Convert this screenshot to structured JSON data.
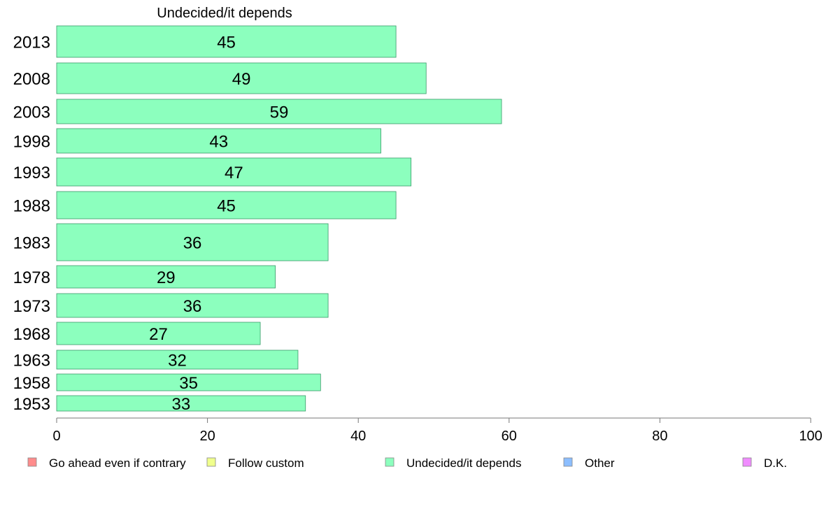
{
  "chart_data": {
    "type": "bar",
    "orientation": "horizontal",
    "title": "Undecided/it depends",
    "categories": [
      "2013",
      "2008",
      "2003",
      "1998",
      "1993",
      "1988",
      "1983",
      "1978",
      "1973",
      "1968",
      "1963",
      "1958",
      "1953"
    ],
    "values": [
      45,
      49,
      59,
      43,
      47,
      45,
      36,
      29,
      36,
      27,
      32,
      35,
      33
    ],
    "data_labels": [
      "45",
      "49",
      "59",
      "43",
      "47",
      "45",
      "36",
      "29",
      "36",
      "27",
      "32",
      "35",
      "33"
    ],
    "xlim": [
      0,
      100
    ],
    "x_ticks": [
      0,
      20,
      40,
      60,
      80,
      100
    ],
    "x_tick_labels": [
      "0",
      "20",
      "40",
      "60",
      "80",
      "100"
    ],
    "bar_color": "#8cffbe",
    "grid": false,
    "legend_position": "bottom",
    "legend": [
      {
        "label": "Go ahead even if contrary",
        "color": "#ff8c8c"
      },
      {
        "label": "Follow custom",
        "color": "#f0ff8c"
      },
      {
        "label": "Undecided/it depends",
        "color": "#8cffbe"
      },
      {
        "label": "Other",
        "color": "#8cbeff"
      },
      {
        "label": "D.K.",
        "color": "#f08cff"
      }
    ]
  }
}
